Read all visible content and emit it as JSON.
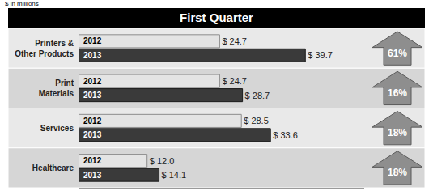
{
  "chart_data": {
    "type": "bar",
    "orientation": "horizontal",
    "title": "First Quarter",
    "subtitle": "$ in millions",
    "categories": [
      "Printers & Other Products",
      "Print Materials",
      "Services",
      "Healthcare"
    ],
    "series": [
      {
        "name": "2012",
        "color": "#e4e4e4",
        "values": [
          24.7,
          24.7,
          28.5,
          12.0
        ],
        "value_labels": [
          "$ 24.7",
          "$ 24.7",
          "$ 28.5",
          "$ 12.0"
        ]
      },
      {
        "name": "2013",
        "color": "#3a3a3a",
        "values": [
          39.7,
          28.7,
          33.6,
          14.1
        ],
        "value_labels": [
          "$ 39.7",
          "$ 28.7",
          "$ 33.6",
          "$ 14.1"
        ]
      }
    ],
    "annotations": [
      "61%",
      "16%",
      "18%",
      "18%"
    ],
    "xlim": [
      0,
      50
    ],
    "tick_labels": false,
    "data_labels": true,
    "grid": false
  }
}
